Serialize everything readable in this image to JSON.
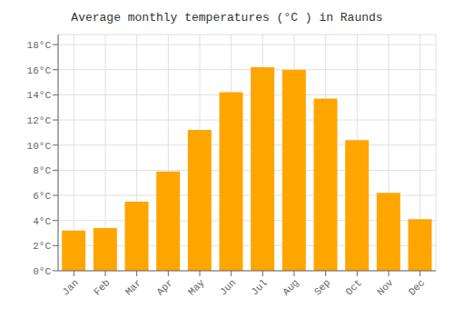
{
  "chart_data": {
    "type": "bar",
    "title": "Average monthly temperatures (°C ) in Raunds",
    "categories": [
      "Jan",
      "Feb",
      "Mar",
      "Apr",
      "May",
      "Jun",
      "Jul",
      "Aug",
      "Sep",
      "Oct",
      "Nov",
      "Dec"
    ],
    "values": [
      3.2,
      3.4,
      5.5,
      7.9,
      11.2,
      14.2,
      16.2,
      16.0,
      13.7,
      10.4,
      6.2,
      4.1
    ],
    "color": "#FFA500",
    "ylim": [
      0,
      18.8
    ],
    "yticks": [
      {
        "value": 0,
        "label": "0°C"
      },
      {
        "value": 2,
        "label": "2°C"
      },
      {
        "value": 4,
        "label": "4°C"
      },
      {
        "value": 6,
        "label": "6°C"
      },
      {
        "value": 8,
        "label": "8°C"
      },
      {
        "value": 10,
        "label": "10°C"
      },
      {
        "value": 12,
        "label": "12°C"
      },
      {
        "value": 14,
        "label": "14°C"
      },
      {
        "value": 16,
        "label": "16°C"
      },
      {
        "value": 18,
        "label": "18°C"
      }
    ],
    "grid": true
  }
}
